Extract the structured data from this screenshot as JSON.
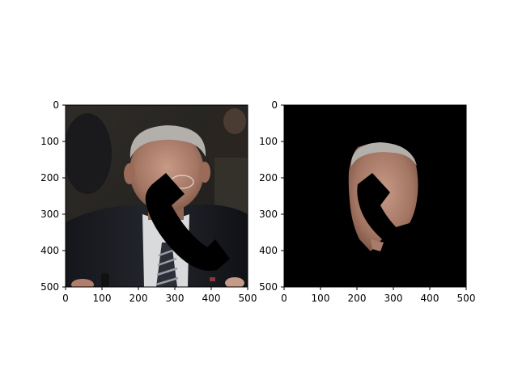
{
  "figure": {
    "background": "#ffffff",
    "spine_color": "#000000"
  },
  "chart_data": [
    {
      "type": "image",
      "image_content": "photo of a gray-haired man in a dark suit and striped tie with a black telephone-handset-shaped occlusion over the face",
      "xlim": [
        0,
        500
      ],
      "ylim": [
        500,
        0
      ],
      "xticks": [
        0,
        100,
        200,
        300,
        400,
        500
      ],
      "yticks": [
        0,
        100,
        200,
        300,
        400,
        500
      ],
      "xtick_labels": [
        "0",
        "100",
        "200",
        "300",
        "400",
        "500"
      ],
      "ytick_labels": [
        "0",
        "100",
        "200",
        "300",
        "400",
        "500"
      ],
      "occluder": "telephone-handset-icon",
      "title": "",
      "xlabel": "",
      "ylabel": ""
    },
    {
      "type": "image",
      "image_content": "segmented face region on black background with the same telephone-handset-shaped occlusion",
      "xlim": [
        0,
        500
      ],
      "ylim": [
        500,
        0
      ],
      "xticks": [
        0,
        100,
        200,
        300,
        400,
        500
      ],
      "yticks": [
        0,
        100,
        200,
        300,
        400,
        500
      ],
      "xtick_labels": [
        "0",
        "100",
        "200",
        "300",
        "400",
        "500"
      ],
      "ytick_labels": [
        "0",
        "100",
        "200",
        "300",
        "400",
        "500"
      ],
      "background_color": "#000000",
      "occluder": "telephone-handset-icon",
      "title": "",
      "xlabel": "",
      "ylabel": ""
    }
  ]
}
